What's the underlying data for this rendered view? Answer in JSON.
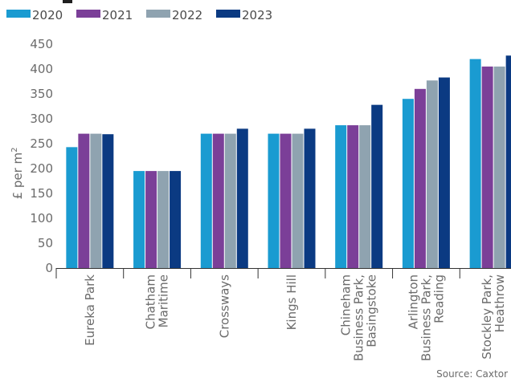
{
  "chart_data": {
    "type": "bar",
    "categories": [
      [
        "Eureka Park"
      ],
      [
        "Chatham",
        "Maritime"
      ],
      [
        "Crossways"
      ],
      [
        "Kings Hill"
      ],
      [
        "Chineham",
        "Business Park,",
        "Basingstoke"
      ],
      [
        "Arlington",
        "Business Park,",
        "Reading"
      ],
      [
        "Stockley Park,",
        "Heathrow"
      ]
    ],
    "series": [
      {
        "name": "2020",
        "color": "#1a9bd1",
        "values": [
          243,
          195,
          270,
          270,
          287,
          340,
          420
        ]
      },
      {
        "name": "2021",
        "color": "#7b3f98",
        "values": [
          270,
          195,
          270,
          270,
          287,
          360,
          405
        ]
      },
      {
        "name": "2022",
        "color": "#8fa3b0",
        "values": [
          270,
          195,
          270,
          270,
          287,
          377,
          405
        ]
      },
      {
        "name": "2023",
        "color": "#0b3a82",
        "values": [
          269,
          195,
          280,
          280,
          328,
          383,
          427
        ]
      }
    ],
    "ylabel_main": "£ per m",
    "ylabel_superscript": "2",
    "ylim": [
      0,
      450
    ],
    "yticks": [
      0,
      50,
      100,
      150,
      200,
      250,
      300,
      350,
      400,
      450
    ],
    "grid": false,
    "legend_position": "top-left",
    "source": "Source: Caxtor"
  }
}
